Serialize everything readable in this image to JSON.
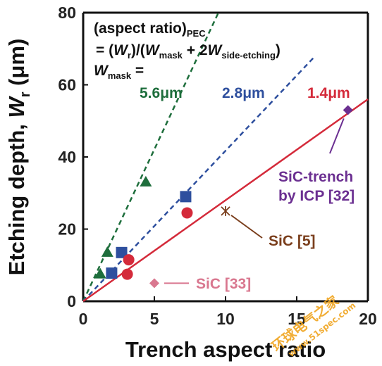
{
  "chart_data": {
    "type": "scatter",
    "xlabel": "Trench aspect ratio",
    "ylabel": {
      "prefix": "Etching depth, ",
      "var": "W",
      "sub": "r",
      "unit": " (μm)"
    },
    "xlim": [
      0,
      20
    ],
    "ylim": [
      0,
      80
    ],
    "xticks": [
      "0",
      "5",
      "10",
      "15",
      "20"
    ],
    "yticks": [
      "0",
      "20",
      "40",
      "60",
      "80"
    ],
    "grid": false,
    "equation": {
      "line1": {
        "text": "(aspect ratio)",
        "sub": "PEC"
      },
      "line2": {
        "a": "= (",
        "wr": "W",
        "wr_sub": "r",
        "mid": ")/(",
        "wm": "W",
        "wm_sub": "mask",
        "plus": " + 2",
        "ws": "W",
        "ws_sub": "side-etching",
        "end": ")"
      },
      "line3": {
        "w": "W",
        "sub": "mask",
        "eq": " ="
      }
    },
    "lines": [
      {
        "name": "5.6μm",
        "color": "#1e6e3c",
        "style": "dashed",
        "x": [
          0,
          9.5
        ],
        "y": [
          0,
          80
        ]
      },
      {
        "name": "2.8μm",
        "color": "#2e4f9e",
        "style": "dashed",
        "x": [
          0,
          16.3
        ],
        "y": [
          0,
          68
        ]
      },
      {
        "name": "1.4μm",
        "color": "#d42a3a",
        "style": "solid",
        "x": [
          0,
          20
        ],
        "y": [
          0,
          56
        ]
      }
    ],
    "series": [
      {
        "name": "5.6μm",
        "marker": "triangle",
        "color": "#1e6e3c",
        "x": [
          1.2,
          1.7,
          4.4
        ],
        "y": [
          7.5,
          13.5,
          33.0
        ]
      },
      {
        "name": "2.8μm",
        "marker": "square",
        "color": "#2e4f9e",
        "x": [
          2.0,
          2.7,
          7.2
        ],
        "y": [
          7.8,
          13.5,
          29.0
        ]
      },
      {
        "name": "1.4μm",
        "marker": "circle",
        "color": "#d42a3a",
        "x": [
          3.2,
          3.1,
          7.3
        ],
        "y": [
          11.5,
          7.5,
          24.5
        ]
      },
      {
        "name": "SiC-trench by ICP [32]",
        "marker": "diamond",
        "color": "#6b2f91",
        "x": [
          18.6
        ],
        "y": [
          53.0
        ]
      },
      {
        "name": "SiC [5]",
        "marker": "asterisk",
        "color": "#7a3e1c",
        "x": [
          10.0
        ],
        "y": [
          25.0
        ]
      },
      {
        "name": "SiC [33]",
        "marker": "diamond",
        "color": "#d9778f",
        "x": [
          5.0
        ],
        "y": [
          5.0
        ]
      }
    ],
    "annotations": [
      {
        "id": "icp",
        "lines": [
          "SiC-trench",
          "by ICP [32]"
        ],
        "color": "#6b2f91"
      },
      {
        "id": "sic5",
        "lines": [
          "SiC [5]"
        ],
        "color": "#7a3e1c"
      },
      {
        "id": "sic33",
        "lines": [
          "SiC [33]"
        ],
        "color": "#d9778f"
      }
    ]
  },
  "watermark": {
    "brand": "环球电气之家",
    "url": "www.51spec.com",
    "color": "#f0a21a"
  }
}
